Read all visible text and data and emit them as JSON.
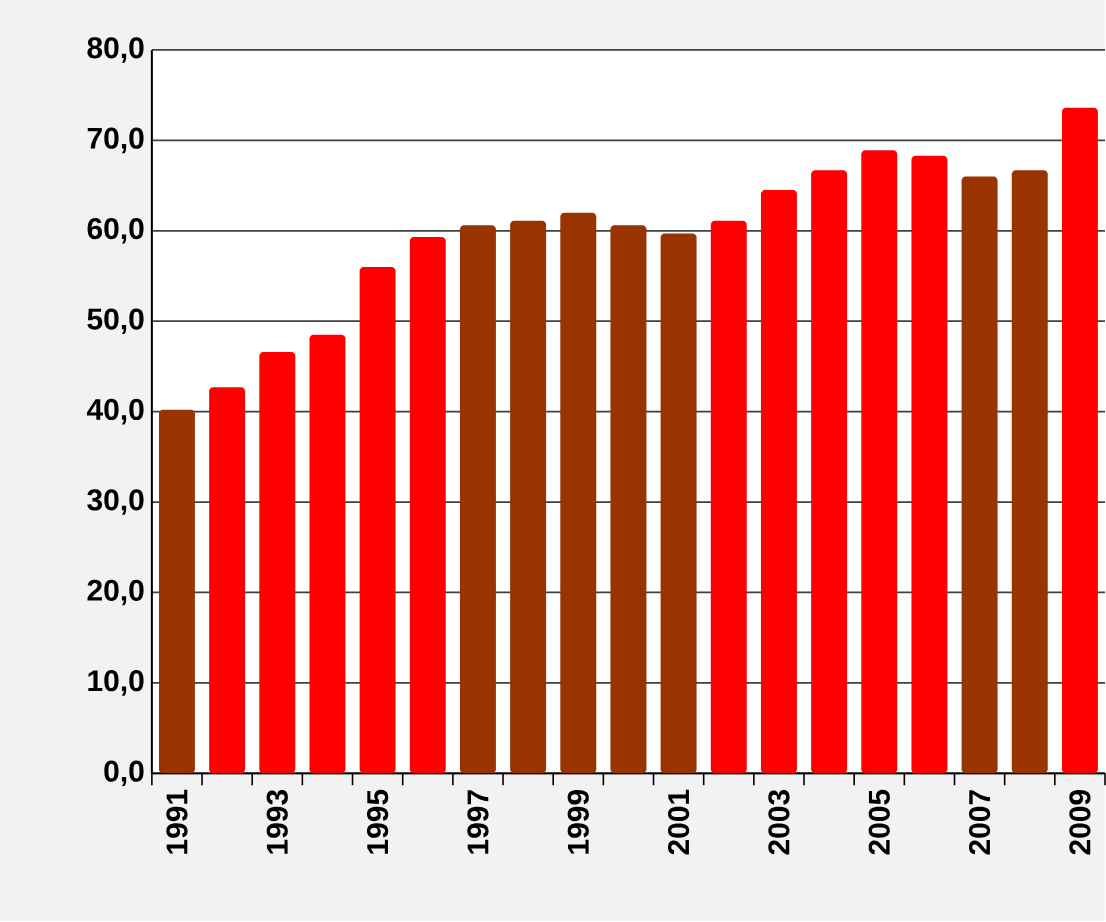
{
  "chart_data": {
    "type": "bar",
    "categories": [
      "1991",
      null,
      "1993",
      null,
      "1995",
      null,
      "1997",
      null,
      "1999",
      null,
      "2001",
      null,
      "2003",
      null,
      "2005",
      null,
      "2007",
      null,
      "2009"
    ],
    "values": [
      40.2,
      42.7,
      46.6,
      48.5,
      56.0,
      59.3,
      60.6,
      61.1,
      62.0,
      60.6,
      59.7,
      61.1,
      64.5,
      66.7,
      68.9,
      68.3,
      66.0,
      66.7,
      73.6
    ],
    "colors": [
      "#993300",
      "#ff0000",
      "#ff0000",
      "#ff0000",
      "#ff0000",
      "#ff0000",
      "#993300",
      "#993300",
      "#993300",
      "#993300",
      "#993300",
      "#ff0000",
      "#ff0000",
      "#ff0000",
      "#ff0000",
      "#ff0000",
      "#993300",
      "#993300",
      "#ff0000"
    ],
    "ylim": [
      0,
      80
    ],
    "yticks": [
      {
        "value": 0,
        "label": "0,0"
      },
      {
        "value": 10,
        "label": "10,0"
      },
      {
        "value": 20,
        "label": "20,0"
      },
      {
        "value": 30,
        "label": "30,0"
      },
      {
        "value": 40,
        "label": "40,0"
      },
      {
        "value": 50,
        "label": "50,0"
      },
      {
        "value": 60,
        "label": "60,0"
      },
      {
        "value": 70,
        "label": "70,0"
      },
      {
        "value": 80,
        "label": "80,0"
      }
    ],
    "grid": "y"
  }
}
